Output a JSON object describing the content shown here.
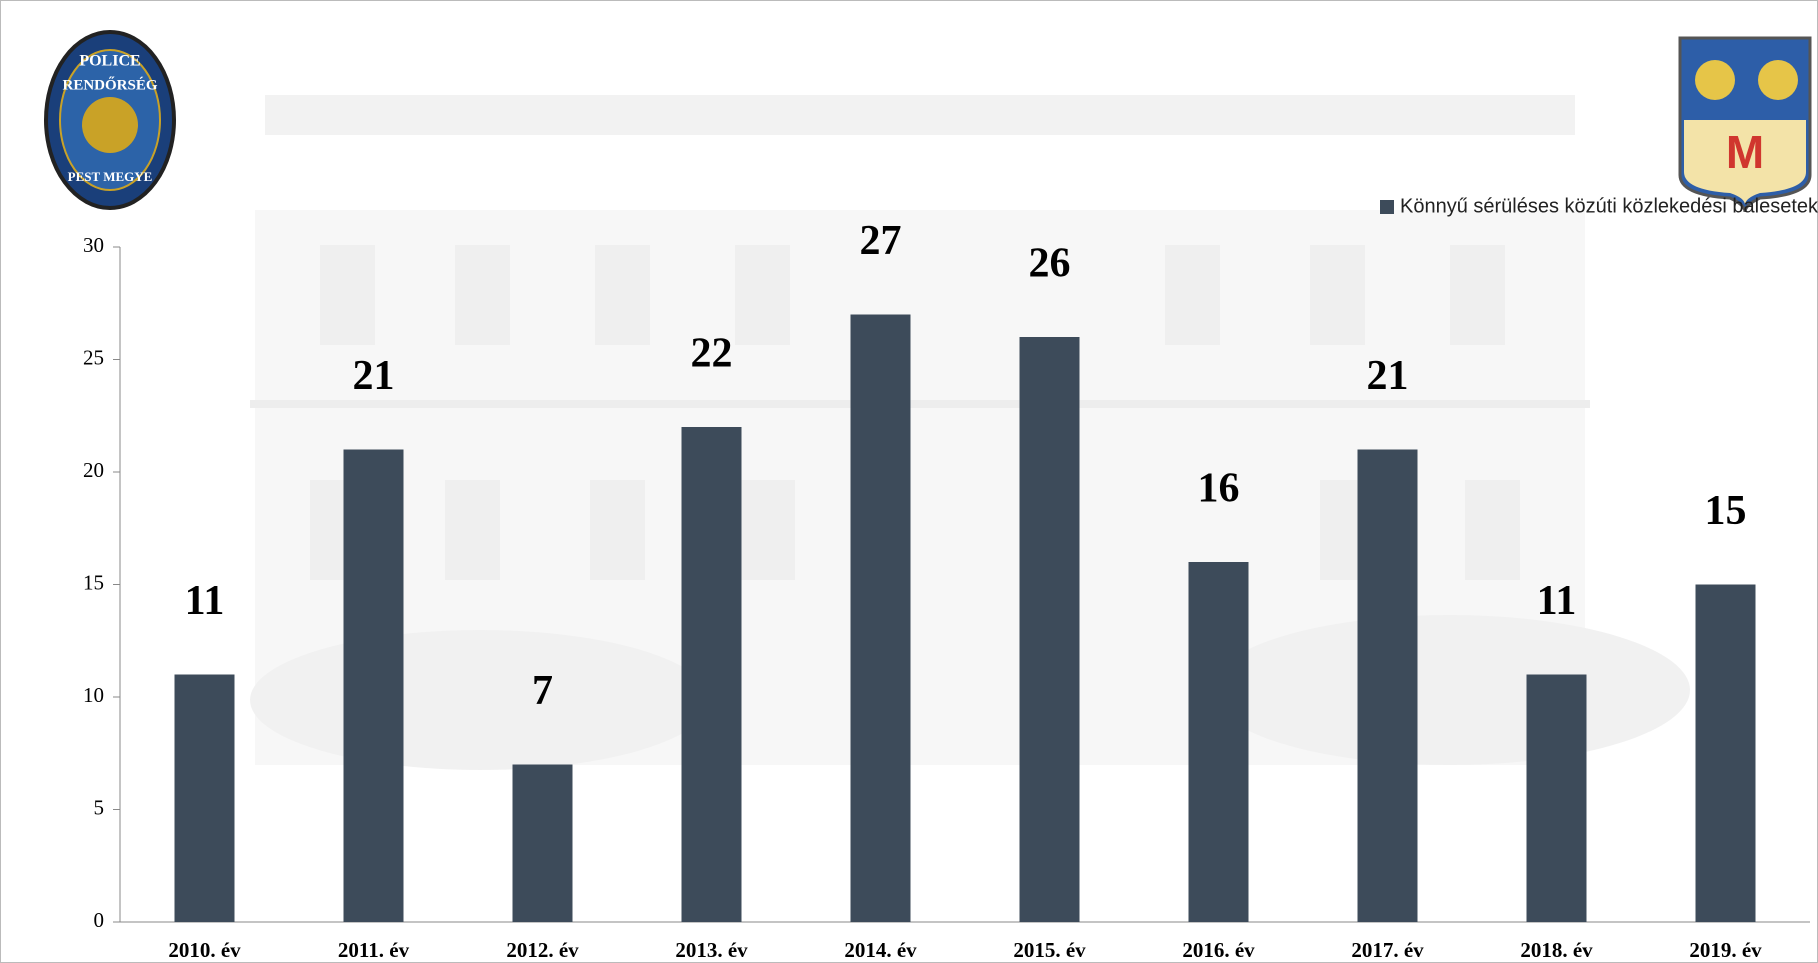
{
  "chart_data": {
    "type": "bar",
    "legend_label": "Könnyű sérüléses közúti közlekedési balesetek",
    "legend_position": "top-right",
    "categories": [
      "2010. év",
      "2011. év",
      "2012. év",
      "2013. év",
      "2014. év",
      "2015. év",
      "2016. év",
      "2017. év",
      "2018. év",
      "2019. év"
    ],
    "values": [
      11,
      21,
      7,
      22,
      27,
      26,
      16,
      21,
      11,
      15
    ],
    "color": "#3d4b5a",
    "ylim": [
      0,
      30
    ],
    "yticks": [
      0,
      5,
      10,
      15,
      20,
      25,
      30
    ],
    "grid": false
  },
  "logos": {
    "left": [
      "POLICE",
      "RENDŐRSÉG",
      "PEST MEGYE"
    ],
    "right": "M"
  }
}
